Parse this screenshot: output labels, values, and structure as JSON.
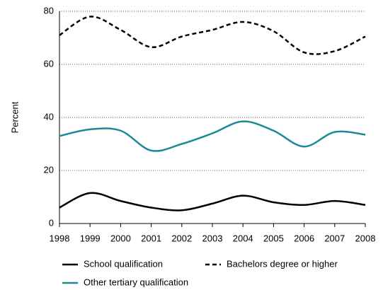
{
  "chart_data": {
    "type": "line",
    "y_label": "Percent",
    "x": [
      1998,
      1999,
      2000,
      2001,
      2002,
      2003,
      2004,
      2005,
      2006,
      2007,
      2008
    ],
    "xlim": [
      1998,
      2008
    ],
    "xticks": [
      1998,
      1999,
      2000,
      2001,
      2002,
      2003,
      2004,
      2005,
      2006,
      2007,
      2008
    ],
    "ylim": [
      0,
      80
    ],
    "yticks": [
      0,
      20,
      40,
      60,
      80
    ],
    "grid": true,
    "series": [
      {
        "name": "School qualification",
        "color": "#000000",
        "dash": "solid",
        "values": [
          6,
          11.5,
          8.5,
          6,
          5,
          7.5,
          10.5,
          8,
          7,
          8.5,
          7
        ]
      },
      {
        "name": "Bachelors degree or higher",
        "color": "#000000",
        "dash": "dashed",
        "values": [
          71,
          78,
          73,
          66.5,
          70.5,
          73,
          76,
          72.5,
          64.5,
          65,
          70.5
        ]
      },
      {
        "name": "Other tertiary qualification",
        "color": "#1a8a96",
        "dash": "solid",
        "values": [
          33,
          35.5,
          35,
          27.5,
          30,
          34,
          38.5,
          35,
          29,
          34.5,
          33.5
        ]
      }
    ]
  }
}
